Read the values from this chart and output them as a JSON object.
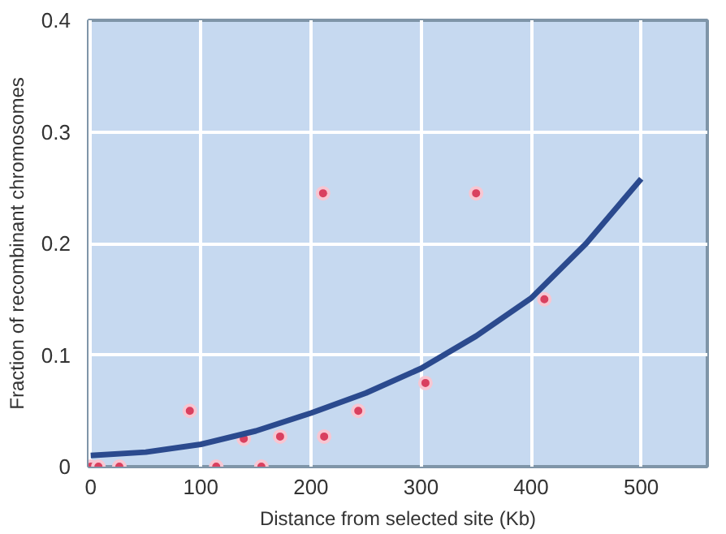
{
  "chart_data": {
    "type": "scatter",
    "xlabel": "Distance from selected site (Kb)",
    "ylabel": "Fraction of recombinant chromosomes",
    "xlim": [
      -2,
      560
    ],
    "ylim": [
      0,
      0.4
    ],
    "xticks": [
      0,
      100,
      200,
      300,
      400,
      500
    ],
    "yticks": [
      0,
      0.1,
      0.2,
      0.3,
      0.4
    ],
    "grid": true,
    "series": [
      {
        "marker": "circle",
        "color": "#d9405f",
        "x": [
          0,
          7,
          26,
          90,
          114,
          139,
          155,
          172,
          211,
          212,
          243,
          304,
          350,
          412
        ],
        "values": [
          0,
          0,
          0,
          0.05,
          0,
          0.025,
          0,
          0.027,
          0.245,
          0.027,
          0.05,
          0.075,
          0.245,
          0.15
        ]
      },
      {
        "type": "line",
        "marker": "none",
        "color": "#2b4a8e",
        "x": [
          0,
          50,
          100,
          150,
          200,
          250,
          300,
          350,
          400,
          450,
          500
        ],
        "values": [
          0.01,
          0.013,
          0.02,
          0.032,
          0.048,
          0.066,
          0.088,
          0.117,
          0.151,
          0.2,
          0.258
        ]
      }
    ]
  }
}
